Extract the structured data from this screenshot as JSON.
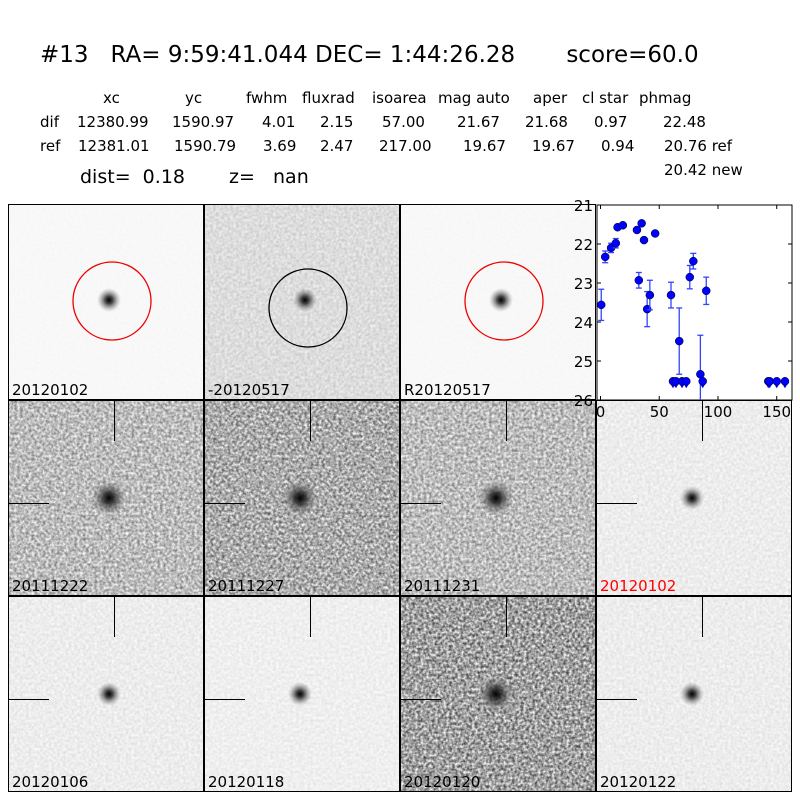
{
  "header": {
    "title": "#13   RA= 9:59:41.044 DEC= 1:44:26.28       score=60.0",
    "columns": [
      "xc",
      "yc",
      "fwhm",
      "fluxrad",
      "isoarea",
      "mag auto",
      "aper",
      "cl star",
      "phmag"
    ],
    "rows": [
      {
        "label": "dif",
        "values": [
          "12380.99",
          "1590.97",
          "4.01",
          "2.15",
          "57.00",
          "21.67",
          "21.68",
          "0.97",
          "22.48"
        ]
      },
      {
        "label": "ref",
        "values": [
          "12381.01",
          "1590.79",
          "3.69",
          "2.47",
          "217.00",
          "19.67",
          "19.67",
          "0.94",
          "20.76 ref"
        ]
      }
    ],
    "phmag_new": "20.42 new",
    "dist": "dist=  0.18",
    "z": "z=   nan"
  },
  "panels": [
    {
      "label": "20120102",
      "type": "new",
      "circle": "red"
    },
    {
      "label": "-20120517",
      "type": "diff",
      "circle": "black"
    },
    {
      "label": "R20120517",
      "type": "ref",
      "circle": "red"
    },
    {
      "label": "20111222",
      "noise": 0.55,
      "color": "#000"
    },
    {
      "label": "20111227",
      "noise": 0.7,
      "color": "#000"
    },
    {
      "label": "20111231",
      "noise": 0.55,
      "color": "#000"
    },
    {
      "label": "20120102",
      "noise": 0.12,
      "color": "#ff0000"
    },
    {
      "label": "20120106",
      "noise": 0.12,
      "color": "#000"
    },
    {
      "label": "20120118",
      "noise": 0.1,
      "color": "#000"
    },
    {
      "label": "20120120",
      "noise": 0.8,
      "color": "#000"
    },
    {
      "label": "20120122",
      "noise": 0.12,
      "color": "#000"
    }
  ],
  "chart_data": {
    "type": "scatter",
    "xlim": [
      -3,
      163
    ],
    "ylim": [
      26,
      21
    ],
    "inverted_y": true,
    "xticks": [
      "0",
      "50",
      "100",
      "150"
    ],
    "yticks": [
      "21",
      "22",
      "23",
      "24",
      "25",
      "26"
    ],
    "color": "#0000ff",
    "points": [
      {
        "x": 0.6,
        "y": 23.56,
        "err": 0.4
      },
      {
        "x": 4,
        "y": 22.33,
        "err": 0.15
      },
      {
        "x": 9,
        "y": 22.1,
        "err": 0.12
      },
      {
        "x": 13,
        "y": 21.98,
        "err": 0.12
      },
      {
        "x": 14.5,
        "y": 21.57,
        "err": 0.05
      },
      {
        "x": 19,
        "y": 21.52,
        "err": 0.05
      },
      {
        "x": 31,
        "y": 21.64,
        "err": 0.05
      },
      {
        "x": 32.6,
        "y": 22.93,
        "err": 0.2
      },
      {
        "x": 35,
        "y": 21.47,
        "err": 0.05
      },
      {
        "x": 37,
        "y": 21.9,
        "err": 0.05
      },
      {
        "x": 39.7,
        "y": 23.67,
        "err": 0.45
      },
      {
        "x": 42,
        "y": 23.31,
        "err": 0.38
      },
      {
        "x": 46.5,
        "y": 21.73,
        "err": 0.05
      },
      {
        "x": 60,
        "y": 23.31,
        "err": 0.33
      },
      {
        "x": 67,
        "y": 24.49,
        "err": 0.85
      },
      {
        "x": 76,
        "y": 22.85,
        "err": 0.3
      },
      {
        "x": 79,
        "y": 22.44,
        "err": 0.2
      },
      {
        "x": 85,
        "y": 25.34,
        "err": 1.0
      },
      {
        "x": 90,
        "y": 23.2,
        "err": 0.35
      }
    ],
    "upper_limits": [
      {
        "x": 61.7,
        "y": 25.52
      },
      {
        "x": 64.2,
        "y": 25.52
      },
      {
        "x": 69.4,
        "y": 25.52
      },
      {
        "x": 73,
        "y": 25.52
      },
      {
        "x": 87,
        "y": 25.52
      },
      {
        "x": 142.8,
        "y": 25.52
      },
      {
        "x": 144,
        "y": 25.52
      },
      {
        "x": 150,
        "y": 25.52
      },
      {
        "x": 157,
        "y": 25.52
      }
    ]
  }
}
